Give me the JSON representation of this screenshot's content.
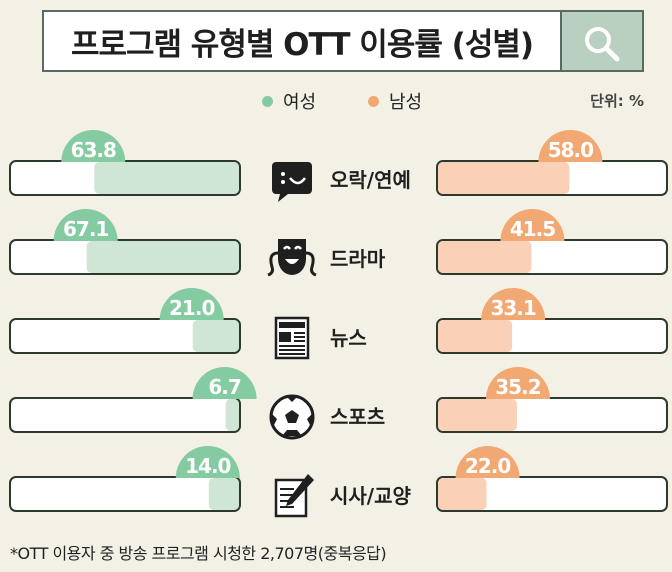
{
  "chart_data": {
    "type": "bar",
    "title": "프로그램 유형별 OTT 이용률 (성별)",
    "unit_label": "단위: %",
    "categories": [
      "오락/연예",
      "드라마",
      "뉴스",
      "스포츠",
      "시사/교양"
    ],
    "category_icons": [
      "chat-bubble-icon",
      "theater-mask-icon",
      "newspaper-icon",
      "soccer-ball-icon",
      "pen-paper-icon"
    ],
    "series": [
      {
        "name": "여성",
        "values": [
          63.8,
          67.1,
          21.0,
          6.7,
          14.0
        ],
        "color": "#84cba2",
        "fill": "#cfe6d6"
      },
      {
        "name": "남성",
        "values": [
          58.0,
          41.5,
          33.1,
          35.2,
          22.0
        ],
        "color": "#f2a873",
        "fill": "#fad1b6"
      }
    ],
    "ylim": [
      0,
      100
    ],
    "legend": "top-center",
    "footnote": "*OTT 이용자 중 방송 프로그램 시청한 2,707명(중복응답)"
  }
}
